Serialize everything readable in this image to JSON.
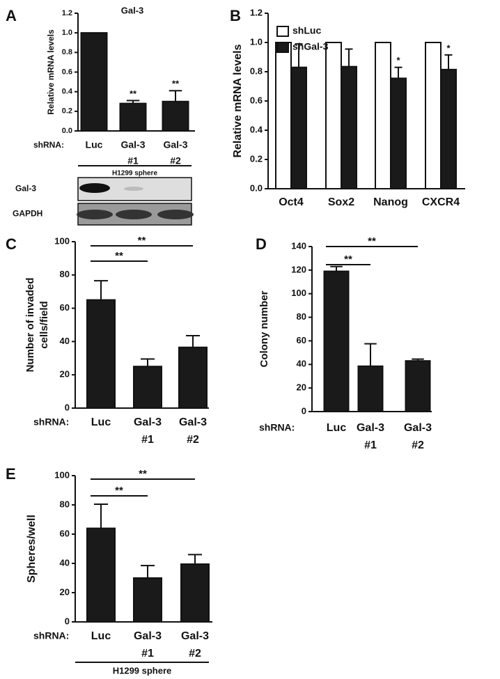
{
  "chart_data": [
    {
      "panel": "A",
      "type": "bar",
      "title": "Gal-3",
      "ylabel": [
        "Relative mRNA levels"
      ],
      "x_prefix": "shRNA:",
      "categories": [
        [
          "Luc"
        ],
        [
          "Gal-3",
          "#1"
        ],
        [
          "Gal-3",
          "#2"
        ]
      ],
      "values": [
        1.0,
        0.28,
        0.3
      ],
      "errors": [
        0,
        0.03,
        0.11
      ],
      "bar_labels": [
        null,
        "**",
        "**"
      ],
      "color": "#1a1a1a",
      "ylim": [
        0,
        1.2
      ],
      "yticks": [
        {
          "value": 0,
          "label": "0.0"
        },
        0.2,
        0.4,
        0.6,
        0.8,
        {
          "value": 1,
          "label": "1.0"
        },
        1.2
      ],
      "footer": "H1299 sphere",
      "blot_rows": [
        "Gal-3",
        "GAPDH"
      ]
    },
    {
      "panel": "B",
      "type": "grouped_bar",
      "ylabel": [
        "Relative mRNA levels"
      ],
      "categories": [
        [
          "Oct4"
        ],
        [
          "Sox2"
        ],
        [
          "Nanog"
        ],
        [
          "CXCR4"
        ]
      ],
      "series": [
        {
          "name": "shLuc",
          "color": "#ffffff",
          "values": [
            1.0,
            1.0,
            1.0,
            1.0
          ],
          "errors": [
            0,
            0,
            0,
            0
          ],
          "bar_labels": [
            null,
            null,
            null,
            null
          ]
        },
        {
          "name": "shGal-3",
          "color": "#1a1a1a",
          "values": [
            0.83,
            0.835,
            0.755,
            0.815
          ],
          "errors": [
            0.16,
            0.12,
            0.075,
            0.1
          ],
          "bar_labels": [
            null,
            null,
            "*",
            "*"
          ]
        }
      ],
      "ylim": [
        0,
        1.2
      ],
      "yticks": [
        {
          "value": 0,
          "label": "0.0"
        },
        0.2,
        0.4,
        0.6,
        0.8,
        {
          "value": 1,
          "label": "1.0"
        },
        1.2
      ],
      "legend": "upper left"
    },
    {
      "panel": "C",
      "type": "bar",
      "ylabel": [
        "Number of invaded",
        "cells/field"
      ],
      "x_prefix": "shRNA:",
      "categories": [
        [
          "Luc"
        ],
        [
          "Gal-3",
          "#1"
        ],
        [
          "Gal-3",
          "#2"
        ]
      ],
      "values": [
        65,
        25,
        36.5
      ],
      "errors": [
        11.5,
        4.5,
        7
      ],
      "color": "#1a1a1a",
      "ylim": [
        0,
        100
      ],
      "yticks": [
        0,
        20,
        40,
        60,
        80,
        100
      ],
      "comparisons": [
        {
          "label": "**"
        },
        {
          "label": "**"
        }
      ]
    },
    {
      "panel": "D",
      "type": "bar",
      "ylabel": [
        "Colony number"
      ],
      "x_prefix": "shRNA:",
      "categories": [
        [
          "Luc"
        ],
        [
          "Gal-3",
          "#1"
        ],
        [
          "Gal-3",
          "#2"
        ]
      ],
      "values": [
        119,
        38.5,
        43
      ],
      "errors": [
        4,
        19,
        1.5
      ],
      "color": "#1a1a1a",
      "ylim": [
        0,
        140
      ],
      "yticks": [
        0,
        20,
        40,
        60,
        80,
        100,
        120,
        140
      ],
      "comparisons": [
        {
          "label": "**"
        },
        {
          "label": "**"
        }
      ]
    },
    {
      "panel": "E",
      "type": "bar",
      "ylabel": [
        "Spheres/well"
      ],
      "x_prefix": "shRNA:",
      "categories": [
        [
          "Luc"
        ],
        [
          "Gal-3",
          "#1"
        ],
        [
          "Gal-3",
          "#2"
        ]
      ],
      "values": [
        64,
        30,
        39.5
      ],
      "errors": [
        16.5,
        8.5,
        6.5
      ],
      "color": "#1a1a1a",
      "ylim": [
        0,
        100
      ],
      "yticks": [
        0,
        20,
        40,
        60,
        80,
        100
      ],
      "comparisons": [
        {
          "label": "**"
        },
        {
          "label": "**"
        }
      ],
      "footer": "H1299 sphere"
    }
  ]
}
